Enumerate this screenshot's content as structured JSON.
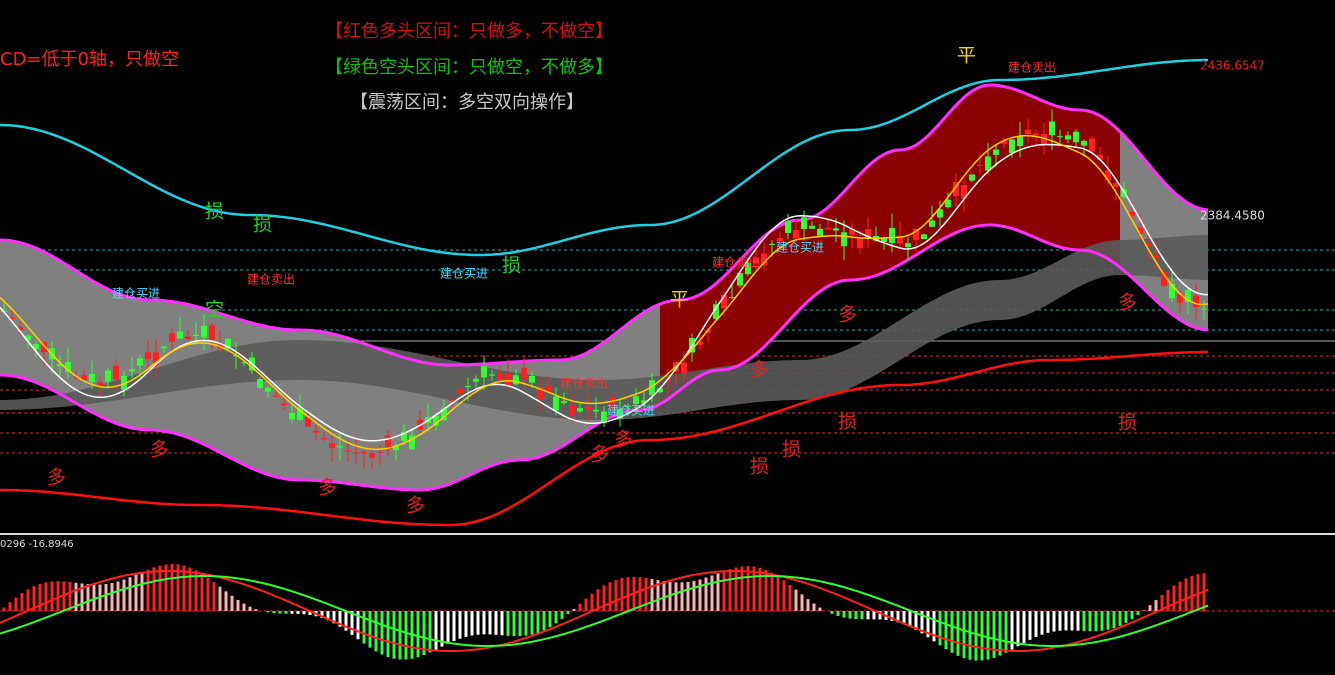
{
  "legend": {
    "macd_rule": "CD=低于0轴，只做空",
    "red_zone": "【红色多头区间：只做多，不做空】",
    "green_zone": "【绿色空头区间：只做空，不做多】",
    "range_zone": "【震荡区间：多空双向操作】"
  },
  "price_labels": [
    "2436.6547",
    "2384.4580"
  ],
  "macd_label": "0296 -16.8946",
  "annotations": [
    "损",
    "损",
    "损",
    "损",
    "损",
    "损",
    "损",
    "多",
    "多",
    "多",
    "多",
    "多",
    "多",
    "多",
    "多",
    "多",
    "平",
    "平",
    "空",
    "建仓买进",
    "建仓卖出",
    "建仓买进",
    "建仓卖出",
    "建仓买进",
    "建仓卖出",
    "建仓买进",
    "建仓卖出"
  ]
}
